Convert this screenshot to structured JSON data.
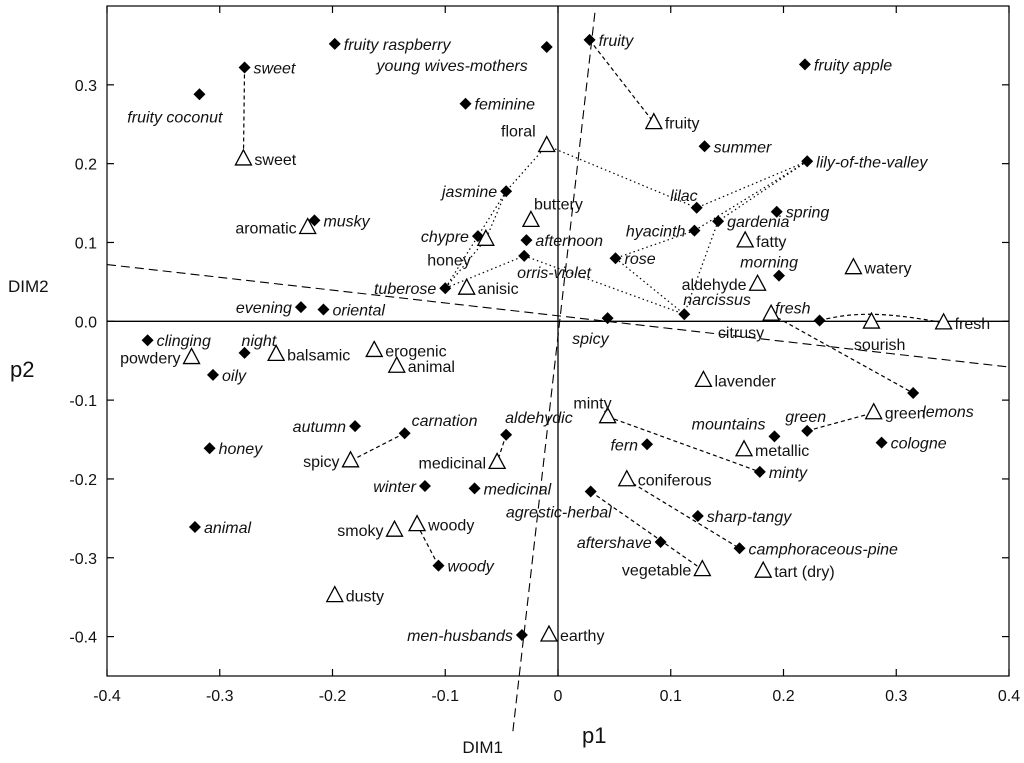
{
  "chart_data": {
    "type": "scatter",
    "title": "",
    "xlabel": "p1",
    "ylabel": "p2",
    "xlim": [
      -0.4,
      0.4
    ],
    "ylim": [
      -0.45,
      0.4
    ],
    "xticks": [
      -0.4,
      -0.3,
      -0.2,
      -0.1,
      0.0,
      0.1,
      0.2,
      0.3,
      0.4
    ],
    "yticks": [
      0.3,
      0.2,
      0.1,
      0.0,
      -0.1,
      -0.2,
      -0.3,
      -0.4
    ],
    "xtick_labels": [
      "-0.4",
      "-0.3",
      "-0.2",
      "-0.1",
      "0",
      "0.1",
      "0.2",
      "0.3",
      "0.4"
    ],
    "ytick_labels": [
      "0.3",
      "0.2",
      "0.1",
      "0.0",
      "-0.1",
      "-0.2",
      "-0.3",
      "-0.4"
    ],
    "dim_lines": [
      {
        "label": "DIM1",
        "from": [
          -0.04,
          -0.52
        ],
        "to": [
          0.033,
          0.395
        ]
      },
      {
        "label": "DIM2",
        "from": [
          -0.4,
          0.072
        ],
        "to": [
          0.4,
          -0.058
        ]
      }
    ],
    "series": [
      {
        "marker": "filled-diamond",
        "points": [
          {
            "label": "sweet",
            "x": -0.278,
            "y": 0.322
          },
          {
            "label": "fruity raspberry",
            "x": -0.198,
            "y": 0.352
          },
          {
            "label": "young wives-mothers",
            "x": -0.01,
            "y": 0.348
          },
          {
            "label": "fruity",
            "x": 0.028,
            "y": 0.357
          },
          {
            "label": "fruity apple",
            "x": 0.219,
            "y": 0.326
          },
          {
            "label": "fruity coconut",
            "x": -0.318,
            "y": 0.288
          },
          {
            "label": "feminine",
            "x": -0.082,
            "y": 0.276
          },
          {
            "label": "summer",
            "x": 0.13,
            "y": 0.222
          },
          {
            "label": "lily-of-the-valley",
            "x": 0.221,
            "y": 0.203
          },
          {
            "label": "jasmine",
            "x": -0.046,
            "y": 0.165
          },
          {
            "label": "lilac",
            "x": 0.123,
            "y": 0.144
          },
          {
            "label": "spring",
            "x": 0.194,
            "y": 0.139
          },
          {
            "label": "musky",
            "x": -0.216,
            "y": 0.128
          },
          {
            "label": "gardenia",
            "x": 0.142,
            "y": 0.127
          },
          {
            "label": "chypre",
            "x": -0.071,
            "y": 0.108
          },
          {
            "label": "hyacinth",
            "x": 0.121,
            "y": 0.115
          },
          {
            "label": "afternoon",
            "x": -0.028,
            "y": 0.103
          },
          {
            "label": "orris-violet",
            "x": -0.03,
            "y": 0.083
          },
          {
            "label": "rose",
            "x": 0.051,
            "y": 0.08
          },
          {
            "label": "morning",
            "x": 0.196,
            "y": 0.058
          },
          {
            "label": "tuberose",
            "x": -0.1,
            "y": 0.042
          },
          {
            "label": "evening",
            "x": -0.228,
            "y": 0.018
          },
          {
            "label": "oriental",
            "x": -0.208,
            "y": 0.015
          },
          {
            "label": "narcissus",
            "x": 0.112,
            "y": 0.009
          },
          {
            "label": "spicy",
            "x": 0.044,
            "y": 0.004
          },
          {
            "label": "fresh",
            "x": 0.232,
            "y": 0.001
          },
          {
            "label": "clinging",
            "x": -0.364,
            "y": -0.024
          },
          {
            "label": "night",
            "x": -0.278,
            "y": -0.04
          },
          {
            "label": "oily",
            "x": -0.306,
            "y": -0.068
          },
          {
            "label": "lemons",
            "x": 0.315,
            "y": -0.091
          },
          {
            "label": "autumn",
            "x": -0.18,
            "y": -0.133
          },
          {
            "label": "carnation",
            "x": -0.136,
            "y": -0.142
          },
          {
            "label": "aldehydic",
            "x": -0.046,
            "y": -0.144
          },
          {
            "label": "fern",
            "x": 0.079,
            "y": -0.156
          },
          {
            "label": "mountains",
            "x": 0.192,
            "y": -0.146
          },
          {
            "label": "green",
            "x": 0.221,
            "y": -0.139
          },
          {
            "label": "cologne",
            "x": 0.287,
            "y": -0.154
          },
          {
            "label": "honey",
            "x": -0.309,
            "y": -0.161
          },
          {
            "label": "winter",
            "x": -0.118,
            "y": -0.209
          },
          {
            "label": "medicinal",
            "x": -0.074,
            "y": -0.212
          },
          {
            "label": "minty",
            "x": 0.179,
            "y": -0.191
          },
          {
            "label": "agrestic-herbal",
            "x": 0.029,
            "y": -0.216
          },
          {
            "label": "sharp-tangy",
            "x": 0.124,
            "y": -0.247
          },
          {
            "label": "animal",
            "x": -0.322,
            "y": -0.261
          },
          {
            "label": "aftershave",
            "x": 0.091,
            "y": -0.28
          },
          {
            "label": "camphoraceous-pine",
            "x": 0.161,
            "y": -0.288
          },
          {
            "label": "woody",
            "x": -0.106,
            "y": -0.31
          },
          {
            "label": "men-husbands",
            "x": -0.032,
            "y": -0.398
          }
        ]
      },
      {
        "marker": "open-triangle",
        "points": [
          {
            "label": "sweet",
            "x": -0.279,
            "y": 0.206
          },
          {
            "label": "fruity",
            "x": 0.085,
            "y": 0.252
          },
          {
            "label": "floral",
            "x": -0.01,
            "y": 0.223
          },
          {
            "label": "buttery",
            "x": -0.024,
            "y": 0.128
          },
          {
            "label": "aromatic",
            "x": -0.222,
            "y": 0.119
          },
          {
            "label": "honey",
            "x": -0.064,
            "y": 0.104
          },
          {
            "label": "fatty",
            "x": 0.166,
            "y": 0.102
          },
          {
            "label": "anisic",
            "x": -0.081,
            "y": 0.042
          },
          {
            "label": "aldehyde",
            "x": 0.177,
            "y": 0.047
          },
          {
            "label": "watery",
            "x": 0.262,
            "y": 0.068
          },
          {
            "label": "citrusy",
            "x": 0.189,
            "y": 0.009
          },
          {
            "label": "sourish",
            "x": 0.278,
            "y": -0.001
          },
          {
            "label": "fresh",
            "x": 0.342,
            "y": -0.002
          },
          {
            "label": "erogenic",
            "x": -0.163,
            "y": -0.037
          },
          {
            "label": "powdery",
            "x": -0.325,
            "y": -0.046
          },
          {
            "label": "balsamic",
            "x": -0.25,
            "y": -0.042
          },
          {
            "label": "animal",
            "x": -0.143,
            "y": -0.057
          },
          {
            "label": "lavender",
            "x": 0.129,
            "y": -0.075
          },
          {
            "label": "minty",
            "x": 0.044,
            "y": -0.121
          },
          {
            "label": "green",
            "x": 0.28,
            "y": -0.116
          },
          {
            "label": "metallic",
            "x": 0.165,
            "y": -0.163
          },
          {
            "label": "spicy",
            "x": -0.184,
            "y": -0.177
          },
          {
            "label": "medicinal",
            "x": -0.054,
            "y": -0.179
          },
          {
            "label": "coniferous",
            "x": 0.061,
            "y": -0.201
          },
          {
            "label": "smoky",
            "x": -0.145,
            "y": -0.265
          },
          {
            "label": "woody",
            "x": -0.125,
            "y": -0.258
          },
          {
            "label": "vegetable",
            "x": 0.128,
            "y": -0.315
          },
          {
            "label": "tart (dry)",
            "x": 0.182,
            "y": -0.317
          },
          {
            "label": "dusty",
            "x": -0.198,
            "y": -0.348
          },
          {
            "label": "earthy",
            "x": -0.008,
            "y": -0.398
          }
        ]
      }
    ],
    "connections": [
      {
        "style": "dashed",
        "points": [
          [
            -0.278,
            0.322
          ],
          [
            -0.279,
            0.206
          ]
        ]
      },
      {
        "style": "dashed",
        "points": [
          [
            0.028,
            0.357
          ],
          [
            0.085,
            0.252
          ]
        ]
      },
      {
        "style": "dotted",
        "points": [
          [
            -0.01,
            0.223
          ],
          [
            0.123,
            0.144
          ]
        ]
      },
      {
        "style": "dotted",
        "points": [
          [
            -0.01,
            0.223
          ],
          [
            -0.046,
            0.165
          ]
        ]
      },
      {
        "style": "dotted",
        "points": [
          [
            -0.046,
            0.165
          ],
          [
            -0.064,
            0.104
          ]
        ]
      },
      {
        "style": "dotted",
        "points": [
          [
            -0.046,
            0.165
          ],
          [
            -0.1,
            0.042
          ]
        ]
      },
      {
        "style": "dotted",
        "points": [
          [
            -0.1,
            0.042
          ],
          [
            -0.064,
            0.104
          ]
        ]
      },
      {
        "style": "dotted",
        "points": [
          [
            -0.1,
            0.042
          ],
          [
            -0.03,
            0.083
          ]
        ]
      },
      {
        "style": "dotted",
        "points": [
          [
            -0.03,
            0.083
          ],
          [
            0.112,
            0.009
          ]
        ]
      },
      {
        "style": "dotted",
        "points": [
          [
            0.221,
            0.203
          ],
          [
            0.123,
            0.144
          ]
        ]
      },
      {
        "style": "dotted",
        "points": [
          [
            0.221,
            0.203
          ],
          [
            0.121,
            0.115
          ]
        ]
      },
      {
        "style": "dotted",
        "points": [
          [
            0.221,
            0.203
          ],
          [
            0.142,
            0.127
          ]
        ]
      },
      {
        "style": "dotted",
        "points": [
          [
            0.121,
            0.115
          ],
          [
            0.051,
            0.08
          ]
        ]
      },
      {
        "style": "dotted",
        "points": [
          [
            0.051,
            0.08
          ],
          [
            0.112,
            0.009
          ]
        ]
      },
      {
        "style": "dotted",
        "points": [
          [
            0.142,
            0.127
          ],
          [
            0.112,
            0.009
          ]
        ]
      },
      {
        "style": "dashed",
        "points": [
          [
            0.232,
            0.001
          ],
          [
            0.262,
            0.012
          ],
          [
            0.29,
            0.012
          ],
          [
            0.342,
            -0.002
          ]
        ]
      },
      {
        "style": "dashed",
        "points": [
          [
            0.189,
            0.009
          ],
          [
            0.315,
            -0.091
          ]
        ]
      },
      {
        "style": "dashed",
        "points": [
          [
            0.221,
            -0.139
          ],
          [
            0.28,
            -0.116
          ]
        ]
      },
      {
        "style": "dashed",
        "points": [
          [
            0.044,
            -0.121
          ],
          [
            0.179,
            -0.191
          ]
        ]
      },
      {
        "style": "dashed",
        "points": [
          [
            -0.136,
            -0.142
          ],
          [
            -0.184,
            -0.177
          ]
        ]
      },
      {
        "style": "dashed",
        "points": [
          [
            -0.046,
            -0.144
          ],
          [
            -0.054,
            -0.179
          ]
        ]
      },
      {
        "style": "dashed",
        "points": [
          [
            0.061,
            -0.201
          ],
          [
            0.161,
            -0.288
          ]
        ]
      },
      {
        "style": "dashed",
        "points": [
          [
            0.029,
            -0.216
          ],
          [
            0.128,
            -0.315
          ]
        ]
      },
      {
        "style": "dashed",
        "points": [
          [
            -0.125,
            -0.258
          ],
          [
            -0.106,
            -0.31
          ]
        ]
      }
    ]
  }
}
